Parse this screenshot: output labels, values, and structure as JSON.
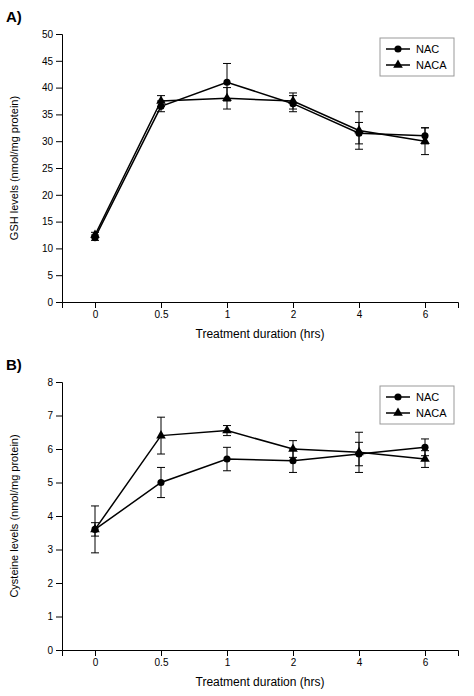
{
  "chart_data": [
    {
      "type": "line",
      "title": "A)",
      "xlabel": "Treatment duration (hrs)",
      "ylabel": "GSH levels (nmol/mg protein)",
      "categories": [
        "0",
        "0.5",
        "1",
        "2",
        "4",
        "6"
      ],
      "series": [
        {
          "name": "NAC",
          "color": "#000000",
          "marker": "circle",
          "values": [
            12.0,
            36.5,
            41.0,
            37.0,
            31.5,
            31.0
          ],
          "errors": [
            0.5,
            1.0,
            3.5,
            1.5,
            2.0,
            1.5
          ]
        },
        {
          "name": "NACA",
          "color": "#000000",
          "marker": "triangle",
          "values": [
            12.5,
            37.5,
            38.0,
            37.5,
            32.0,
            30.0
          ],
          "errors": [
            0.5,
            1.0,
            2.0,
            1.5,
            3.5,
            2.5
          ]
        }
      ],
      "ylim": [
        0,
        50
      ],
      "yticks": [
        0,
        5,
        10,
        15,
        20,
        25,
        30,
        35,
        40,
        45,
        50
      ],
      "legend": "upper right"
    },
    {
      "type": "line",
      "title": "B)",
      "xlabel": "Treatment duration (hrs)",
      "ylabel": "Cysteine levels (nmol/mg protein)",
      "categories": [
        "0",
        "0.5",
        "1",
        "2",
        "4",
        "6"
      ],
      "series": [
        {
          "name": "NAC",
          "color": "#000000",
          "marker": "circle",
          "values": [
            3.6,
            5.0,
            5.7,
            5.65,
            5.85,
            6.05
          ],
          "errors": [
            0.2,
            0.45,
            0.35,
            0.35,
            0.35,
            0.25
          ]
        },
        {
          "name": "NACA",
          "color": "#000000",
          "marker": "triangle",
          "values": [
            3.6,
            6.4,
            6.55,
            6.0,
            5.9,
            5.7
          ],
          "errors": [
            0.7,
            0.55,
            0.15,
            0.25,
            0.6,
            0.25
          ]
        }
      ],
      "ylim": [
        0,
        8
      ],
      "yticks": [
        0,
        1,
        2,
        3,
        4,
        5,
        6,
        7,
        8
      ],
      "legend": "upper right"
    }
  ]
}
